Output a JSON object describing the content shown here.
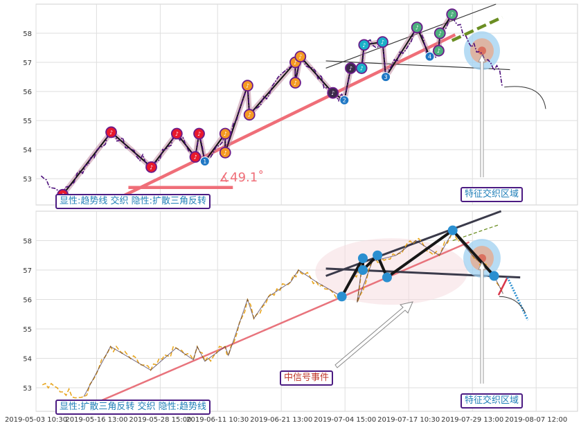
{
  "chart_data": [
    {
      "type": "line",
      "panel": "top",
      "ylim": [
        52.1,
        59.0
      ],
      "y_ticks": [
        "53",
        "54",
        "55",
        "56",
        "57",
        "58"
      ],
      "grid": true,
      "annotations": {
        "angle_label": "∡49.1˚",
        "bottom_label": "显性:趋势线 交织 隐性:扩散三角反转",
        "zone_label": "特征交织区域"
      },
      "colors": {
        "price": "#4b0d7a",
        "trend": "#ef6e78",
        "zigzag": "#111111",
        "highlight": "#c08aa0",
        "forecast": "#6b8e23"
      },
      "zigzag_points": [
        {
          "x": 0.2,
          "y": 52.45,
          "label": "♪",
          "color": "#e8192c"
        },
        {
          "x": 7.8,
          "y": 54.6,
          "label": "♪",
          "color": "#e8192c"
        },
        {
          "x": 14.1,
          "y": 53.4,
          "label": "♪",
          "color": "#e8192c"
        },
        {
          "x": 18.1,
          "y": 54.55,
          "label": "♪",
          "color": "#e8192c"
        },
        {
          "x": 21.0,
          "y": 53.75,
          "label": "♪",
          "color": "#e8192c"
        },
        {
          "x": 21.6,
          "y": 54.55,
          "label": "♪",
          "color": "#e8192c"
        },
        {
          "x": 22.5,
          "y": 53.6,
          "label": "1",
          "color": "#1f77c4"
        },
        {
          "x": 25.7,
          "y": 54.55,
          "label": "♪",
          "color": "#f59a23"
        },
        {
          "x": 25.7,
          "y": 53.9,
          "label": "♪",
          "color": "#f59a23"
        },
        {
          "x": 29.2,
          "y": 56.2,
          "label": "♪",
          "color": "#f59a23"
        },
        {
          "x": 29.5,
          "y": 55.2,
          "label": "♪",
          "color": "#f59a23"
        },
        {
          "x": 36.7,
          "y": 57.0,
          "label": "♪",
          "color": "#f59a23"
        },
        {
          "x": 36.7,
          "y": 56.3,
          "label": "♪",
          "color": "#f59a23"
        },
        {
          "x": 37.5,
          "y": 57.2,
          "label": "♪",
          "color": "#f59a23"
        },
        {
          "x": 42.6,
          "y": 55.95,
          "label": "♪",
          "color": "#3c2a4a"
        },
        {
          "x": 44.4,
          "y": 55.7,
          "label": "2",
          "color": "#1f77c4"
        },
        {
          "x": 45.4,
          "y": 56.8,
          "label": "♪",
          "color": "#3c2a4a"
        },
        {
          "x": 47.1,
          "y": 56.8,
          "label": "♪",
          "color": "#1ab0c8"
        },
        {
          "x": 47.5,
          "y": 57.6,
          "label": "♪",
          "color": "#1ab0c8"
        },
        {
          "x": 50.4,
          "y": 57.7,
          "label": "♪",
          "color": "#1ab0c8"
        },
        {
          "x": 50.9,
          "y": 56.5,
          "label": "3",
          "color": "#1f77c4"
        },
        {
          "x": 55.8,
          "y": 58.2,
          "label": "♪",
          "color": "#4caf7d"
        },
        {
          "x": 57.8,
          "y": 57.2,
          "label": "4",
          "color": "#1f77c4"
        },
        {
          "x": 59.2,
          "y": 57.4,
          "label": "♪",
          "color": "#4caf7d"
        },
        {
          "x": 59.4,
          "y": 58.0,
          "label": "♪",
          "color": "#4caf7d"
        },
        {
          "x": 61.3,
          "y": 58.65,
          "label": "♪",
          "color": "#4caf7d"
        }
      ]
    },
    {
      "type": "line",
      "panel": "bottom",
      "ylim": [
        52.2,
        59.0
      ],
      "y_ticks": [
        "53",
        "54",
        "55",
        "56",
        "57",
        "58"
      ],
      "grid": true,
      "x_ticks": [
        "2019-05-03 10:30",
        "2019-05-16 13:00",
        "2019-05-28 15:00",
        "2019-06-11 10:30",
        "2019-06-21 13:00",
        "2019-07-04 15:00",
        "2019-07-17 10:30",
        "2019-07-29 13:00",
        "2019-08-07 12:00"
      ],
      "annotations": {
        "bottom_label": "显性:扩散三角反转 交织 隐性:趋势线",
        "signal_label": "中信号事件",
        "zone_label": "特征交织区域"
      },
      "colors": {
        "price": "#e8a620",
        "trend": "#e8737c",
        "pattern": "#161616",
        "point": "#2a8fd0",
        "forecast": "#6b8e23"
      },
      "pattern_points": [
        {
          "x": 44.0,
          "y": 56.1
        },
        {
          "x": 47.3,
          "y": 57.4
        },
        {
          "x": 47.3,
          "y": 57.0
        },
        {
          "x": 49.6,
          "y": 57.5
        },
        {
          "x": 51.1,
          "y": 56.75
        },
        {
          "x": 61.4,
          "y": 58.35
        },
        {
          "x": 67.9,
          "y": 56.8
        }
      ]
    }
  ]
}
